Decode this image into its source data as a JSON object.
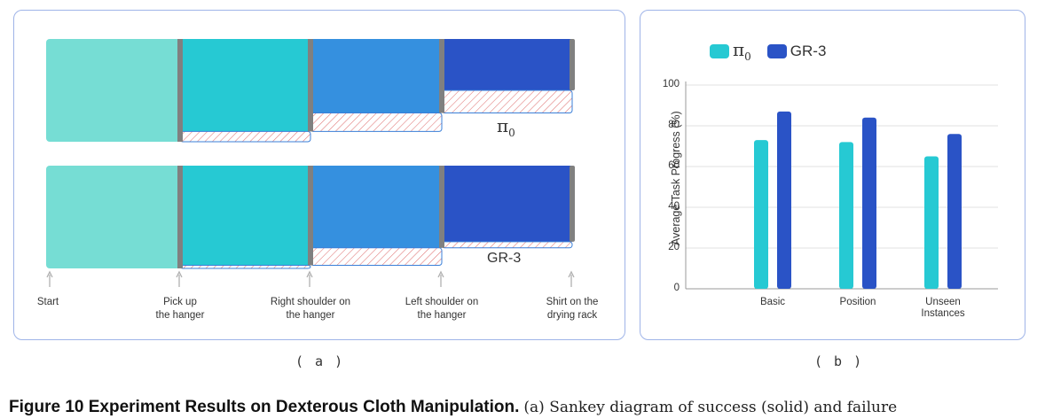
{
  "panel_a": {
    "label": "( a )",
    "stages": [
      {
        "label": "Start"
      },
      {
        "label": "Pick up\nthe hanger"
      },
      {
        "label": "Right shoulder on\nthe hanger"
      },
      {
        "label": "Left shoulder on\nthe hanger"
      },
      {
        "label": "Shirt on the\ndrying rack"
      }
    ],
    "rows": [
      {
        "name": "π",
        "subscript": "0",
        "stage_success": [
          1.0,
          0.9,
          0.72,
          0.5
        ],
        "stage_colors": [
          "#76ddd4",
          "#26c9d3",
          "#3590df",
          "#2a53c6"
        ]
      },
      {
        "name": "GR-3",
        "subscript": "",
        "stage_success": [
          1.0,
          0.97,
          0.8,
          0.74
        ],
        "stage_colors": [
          "#76ddd4",
          "#26c9d3",
          "#3590df",
          "#2a53c6"
        ]
      }
    ]
  },
  "chart_data": {
    "type": "bar",
    "categories": [
      "Basic",
      "Position",
      "Unseen\nInstances"
    ],
    "series": [
      {
        "name": "π0",
        "color": "#26c9d3",
        "values": [
          73,
          72,
          65
        ]
      },
      {
        "name": "GR-3",
        "color": "#2a53c6",
        "values": [
          87,
          84,
          76
        ]
      }
    ],
    "ylabel": "Average Task Progress (%)",
    "ylim": [
      0,
      100
    ],
    "yticks": [
      0,
      20,
      40,
      60,
      80,
      100
    ],
    "grid": true,
    "legend_position": "top-left",
    "panel_label": "( b )"
  },
  "legend": {
    "pi_symbol": "π",
    "pi_sub": "0",
    "gr3": "GR-3"
  },
  "caption": {
    "figure": "Figure 10  Experiment Results on Dexterous Cloth Manipulation.",
    "text": "(a) Sankey diagram of success (solid) and failure"
  }
}
